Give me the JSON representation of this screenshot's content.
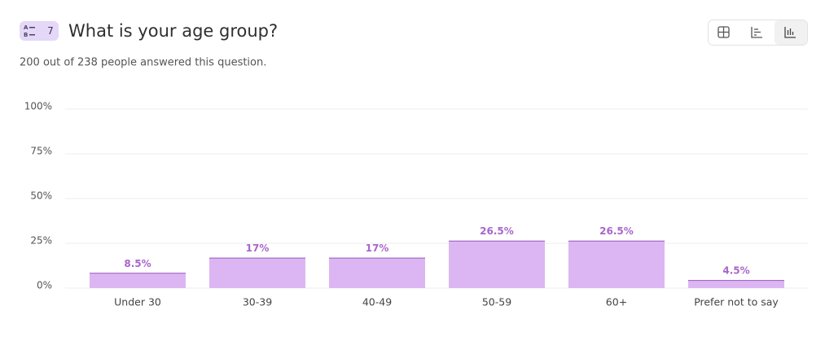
{
  "question": {
    "number": "7",
    "title": "What is your age group?",
    "subtitle": "200 out of 238 people answered this question."
  },
  "chart_data": {
    "type": "bar",
    "categories": [
      "Under 30",
      "30-39",
      "40-49",
      "50-59",
      "60+",
      "Prefer not to say"
    ],
    "values": [
      8.5,
      17,
      17,
      26.5,
      26.5,
      4.5
    ],
    "value_labels": [
      "8.5%",
      "17%",
      "17%",
      "26.5%",
      "26.5%",
      "4.5%"
    ],
    "color": "#dcb6f2",
    "ylim": [
      0,
      100
    ],
    "yticks": [
      {
        "value": 0,
        "label": "0%"
      },
      {
        "value": 25,
        "label": "25%"
      },
      {
        "value": 50,
        "label": "50%"
      },
      {
        "value": 75,
        "label": "75%"
      },
      {
        "value": 100,
        "label": "100%"
      }
    ],
    "grid": true
  }
}
